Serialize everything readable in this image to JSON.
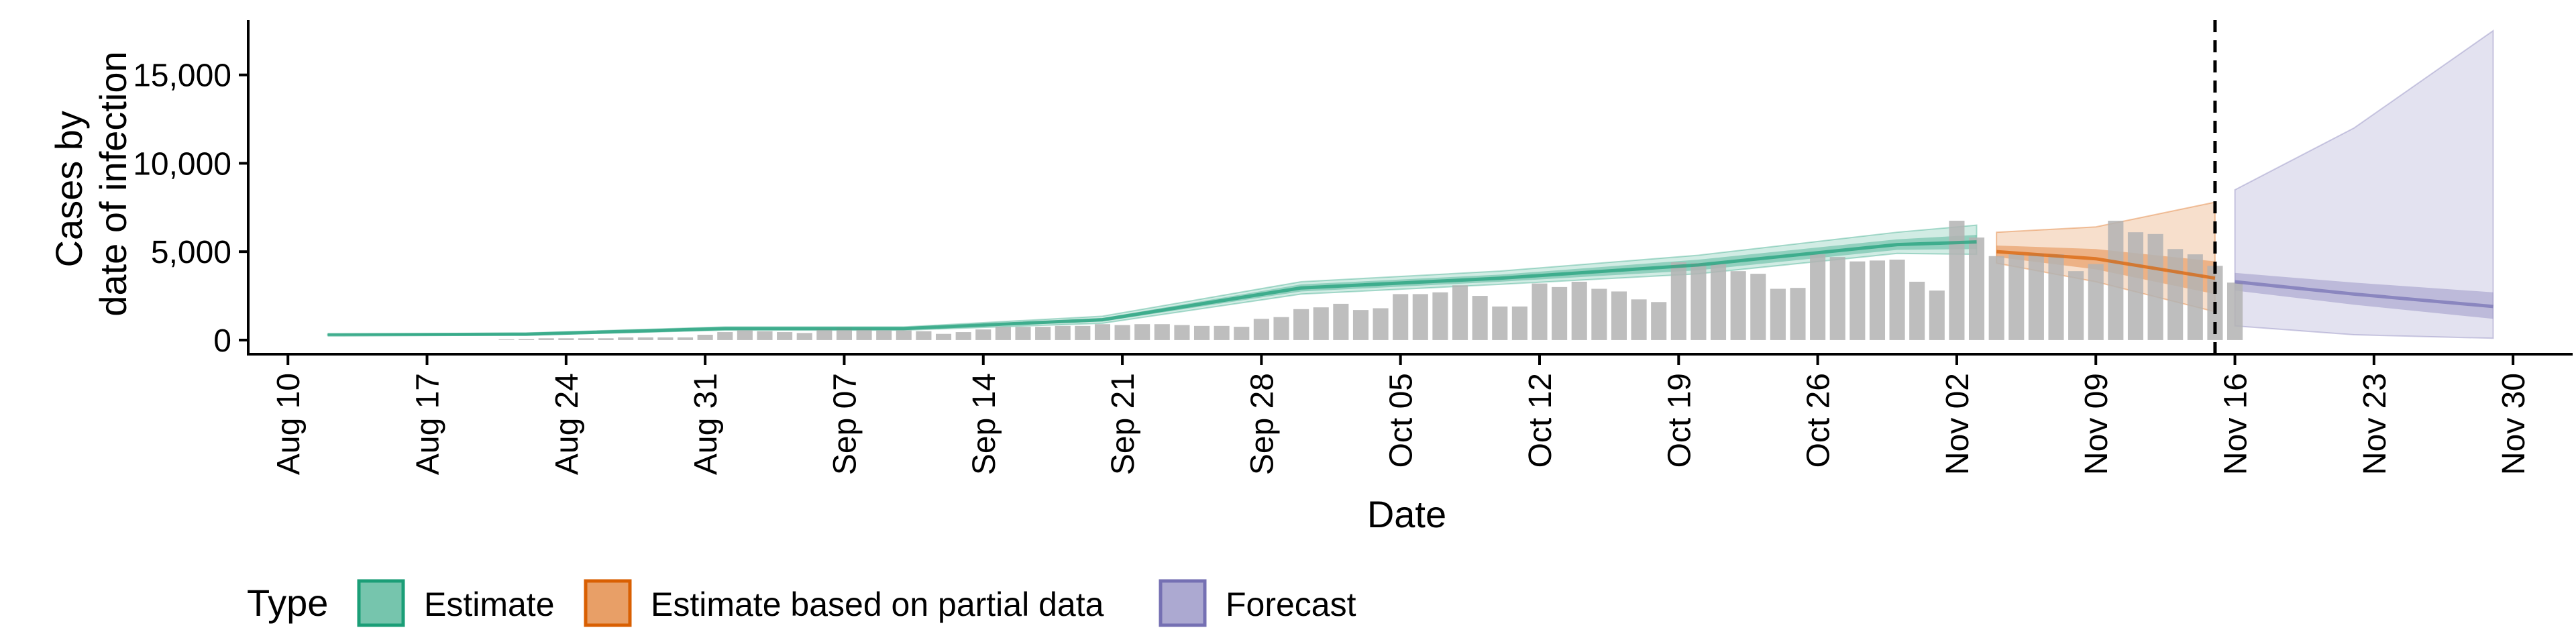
{
  "chart_data": {
    "type": "bar",
    "title": "",
    "xlabel": "Date",
    "ylabel_lines": [
      "Cases by",
      "date of infection"
    ],
    "x_ticks": [
      "Aug 10",
      "Aug 17",
      "Aug 24",
      "Aug 31",
      "Sep 07",
      "Sep 14",
      "Sep 21",
      "Sep 28",
      "Oct 05",
      "Oct 12",
      "Oct 19",
      "Oct 26",
      "Nov 02",
      "Nov 09",
      "Nov 16",
      "Nov 23",
      "Nov 30"
    ],
    "x_tick_dates": [
      "2020-08-10",
      "2020-08-17",
      "2020-08-24",
      "2020-08-31",
      "2020-09-07",
      "2020-09-14",
      "2020-09-21",
      "2020-09-28",
      "2020-10-05",
      "2020-10-12",
      "2020-10-19",
      "2020-10-26",
      "2020-11-02",
      "2020-11-09",
      "2020-11-16",
      "2020-11-23",
      "2020-11-30"
    ],
    "xlim": [
      "2020-08-08",
      "2020-12-03"
    ],
    "y_ticks": [
      "0",
      "5,000",
      "10,000",
      "15,000"
    ],
    "y_tick_values": [
      0,
      5000,
      10000,
      15000
    ],
    "ylim": [
      -800,
      18100
    ],
    "grid": false,
    "vline_date": "2020-11-15",
    "vline_style": "dashed",
    "legend": {
      "title": "Type",
      "position": "bottom-left",
      "entries": [
        {
          "label": "Estimate",
          "fill": "#1b9e77"
        },
        {
          "label": "Estimate based on partial data",
          "fill": "#d95f02"
        },
        {
          "label": "Forecast",
          "fill": "#7570b3"
        }
      ]
    },
    "bars": {
      "color": "#b3b3b3",
      "start_date": "2020-08-21",
      "values": [
        40,
        60,
        100,
        100,
        100,
        100,
        150,
        150,
        150,
        150,
        300,
        450,
        550,
        500,
        450,
        400,
        650,
        700,
        650,
        550,
        550,
        500,
        350,
        450,
        600,
        750,
        750,
        750,
        800,
        800,
        900,
        850,
        900,
        900,
        850,
        800,
        800,
        750,
        1200,
        1300,
        1750,
        1850,
        2050,
        1700,
        1800,
        2600,
        2600,
        2700,
        3100,
        2500,
        1900,
        1900,
        3200,
        3000,
        3300,
        2900,
        2750,
        2300,
        2150,
        4400,
        4350,
        4300,
        3900,
        3750,
        2900,
        2950,
        4850,
        4700,
        4450,
        4500,
        4550,
        3300,
        2800,
        6750,
        5800,
        4750,
        4850,
        4900,
        4850,
        3900,
        4300,
        6750,
        6100,
        6000,
        5150,
        4850,
        4200,
        3250
      ]
    },
    "series": [
      {
        "name": "Estimate",
        "color": "#1b9e77",
        "x": [
          "2020-08-12",
          "2020-08-22",
          "2020-09-01",
          "2020-09-10",
          "2020-09-20",
          "2020-09-30",
          "2020-10-10",
          "2020-10-20",
          "2020-10-30",
          "2020-11-03"
        ],
        "median": [
          300,
          330,
          650,
          650,
          1150,
          2950,
          3500,
          4250,
          5400,
          5550
        ],
        "inner_lower": [
          300,
          300,
          600,
          600,
          1050,
          2750,
          3300,
          3950,
          5100,
          5150
        ],
        "inner_upper": [
          300,
          360,
          700,
          700,
          1250,
          3150,
          3700,
          4550,
          5700,
          5950
        ],
        "outer_lower": [
          280,
          280,
          560,
          560,
          950,
          2600,
          3150,
          3750,
          4900,
          4850
        ],
        "outer_upper": [
          320,
          400,
          740,
          740,
          1350,
          3300,
          3900,
          4800,
          6100,
          6500
        ]
      },
      {
        "name": "Estimate based on partial data",
        "color": "#d95f02",
        "x": [
          "2020-11-04",
          "2020-11-09",
          "2020-11-15"
        ],
        "median": [
          5000,
          4600,
          3500
        ],
        "inner_lower": [
          4700,
          4000,
          2600
        ],
        "inner_upper": [
          5350,
          5150,
          4450
        ],
        "outer_lower": [
          4350,
          3300,
          1600
        ],
        "outer_upper": [
          6100,
          6400,
          7800
        ]
      },
      {
        "name": "Forecast",
        "color": "#7570b3",
        "x": [
          "2020-11-16",
          "2020-11-22",
          "2020-11-29"
        ],
        "median": [
          3300,
          2600,
          1900
        ],
        "inner_lower": [
          2800,
          2000,
          1200
        ],
        "inner_upper": [
          3800,
          3250,
          2700
        ],
        "outer_lower": [
          800,
          300,
          100
        ],
        "outer_upper": [
          8500,
          12000,
          17500
        ]
      }
    ]
  }
}
